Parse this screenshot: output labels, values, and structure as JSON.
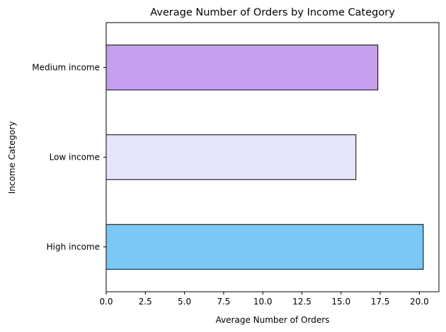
{
  "chart_data": {
    "type": "bar",
    "orientation": "horizontal",
    "title": "Average Number of Orders by Income Category",
    "xlabel": "Average Number of Orders",
    "ylabel": "Income Category",
    "categories": [
      "High income",
      "Low income",
      "Medium income"
    ],
    "values": [
      20.25,
      15.95,
      17.35
    ],
    "bar_colors": [
      "#7bc8f6",
      "#e6e6fa",
      "#c79fef"
    ],
    "edge_color": "#000000",
    "xlim": [
      0,
      21.25
    ],
    "xticks": [
      0.0,
      2.5,
      5.0,
      7.5,
      10.0,
      12.5,
      15.0,
      17.5,
      20.0
    ],
    "xtick_labels": [
      "0.0",
      "2.5",
      "5.0",
      "7.5",
      "10.0",
      "12.5",
      "15.0",
      "17.5",
      "20.0"
    ],
    "grid": false,
    "legend": false
  }
}
